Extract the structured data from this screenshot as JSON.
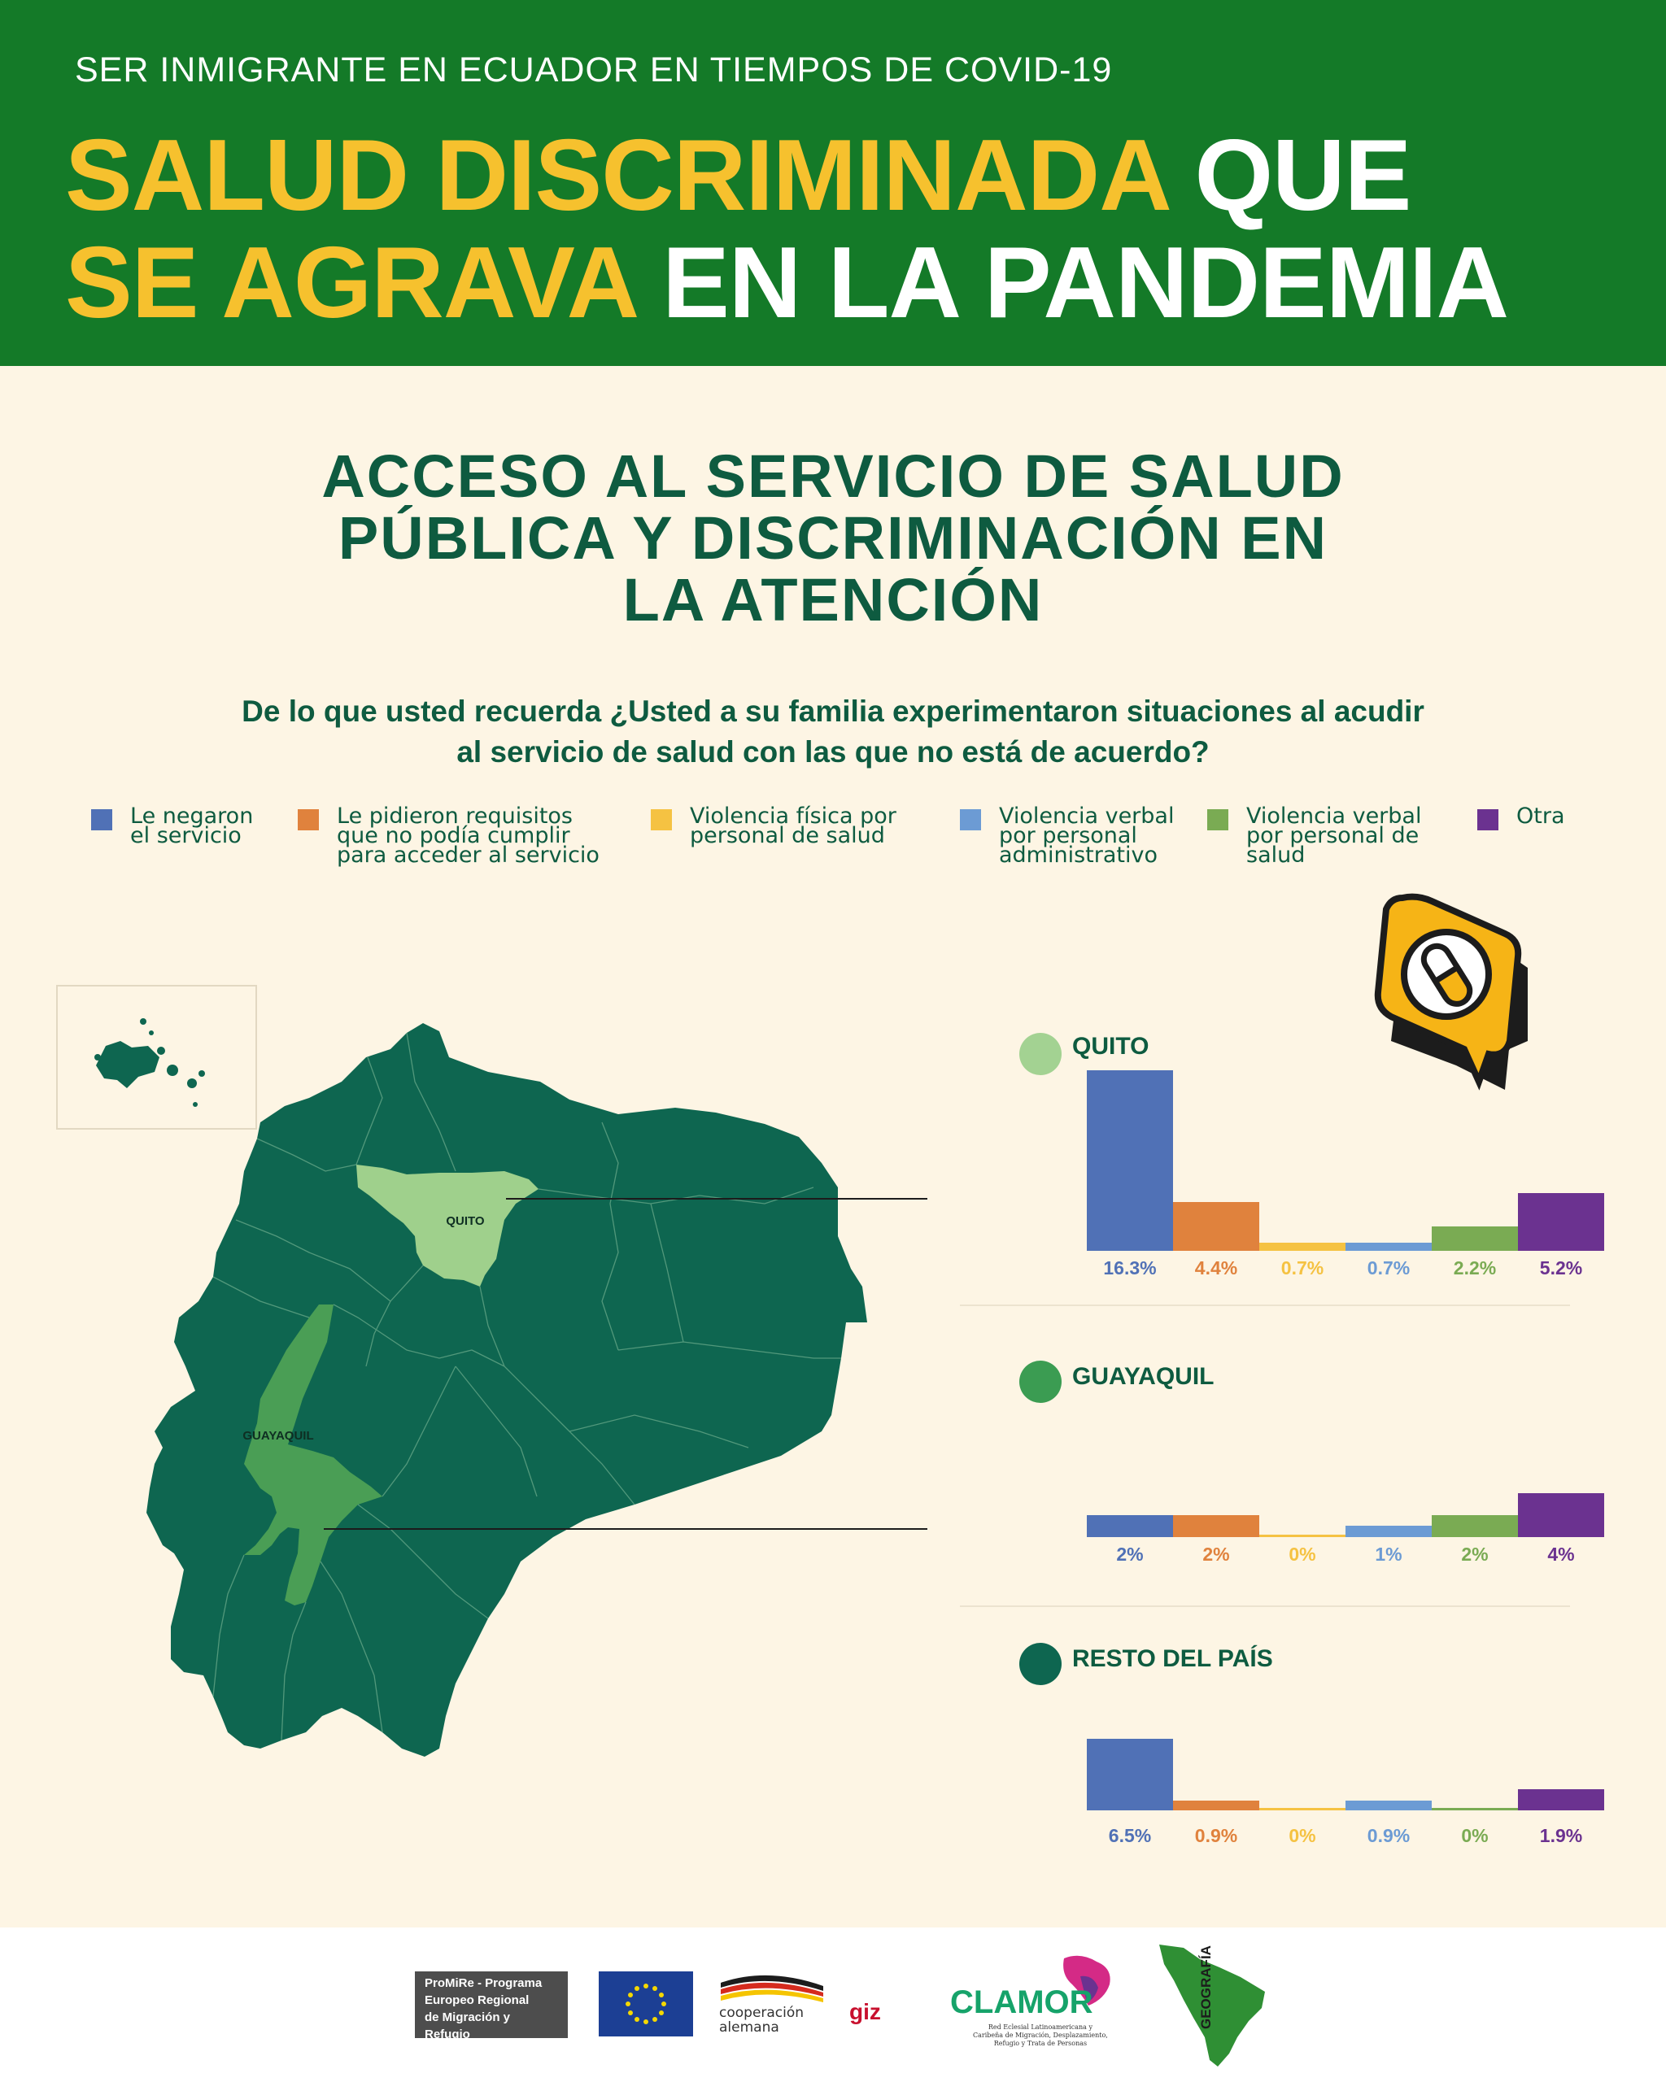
{
  "header": {
    "kicker": "SER INMIGRANTE EN ECUADOR EN TIEMPOS DE COVID-19",
    "line1_yellow": "SALUD DISCRIMINADA",
    "line1_white": "QUE",
    "line2_yellow": "SE AGRAVA",
    "line2_white": "EN LA PANDEMIA"
  },
  "section": {
    "title_line1": "ACCESO AL SERVICIO DE SALUD",
    "title_line2": "PÚBLICA Y DISCRIMINACIÓN EN",
    "title_line3": "LA ATENCIÓN",
    "question_line1": "De lo que usted recuerda ¿Usted a su familia experimentaron situaciones al acudir",
    "question_line2": "al servicio de salud con las que no está de acuerdo?"
  },
  "legend": [
    {
      "label": "Le negaron el servicio",
      "lines": [
        "Le negaron",
        "el servicio"
      ],
      "color": "#5071b6"
    },
    {
      "label": "Le pidieron requisitos que no podía cumplir para acceder al servicio",
      "lines": [
        "Le pidieron requisitos",
        "que no podía cumplir",
        "para acceder al servicio"
      ],
      "color": "#e0823d"
    },
    {
      "label": "Violencia física por personal de salud",
      "lines": [
        "Violencia física por",
        "personal de salud"
      ],
      "color": "#f5c242"
    },
    {
      "label": "Violencia verbal por personal administrativo",
      "lines": [
        "Violencia verbal",
        "por personal",
        "administrativo"
      ],
      "color": "#6c9bd4"
    },
    {
      "label": "Violencia verbal por personal de salud",
      "lines": [
        "Violencia verbal",
        "por personal de",
        "salud"
      ],
      "color": "#7aab53"
    },
    {
      "label": "Otra",
      "lines": [
        "Otra"
      ],
      "color": "#6b3290"
    }
  ],
  "map": {
    "quito_label": "QUITO",
    "guayaquil_label": "GUAYAQUIL",
    "colors": {
      "country": "#0e6650",
      "quito": "#9fd08c",
      "guayaquil": "#4a9e55"
    }
  },
  "chart_data": [
    {
      "type": "bar",
      "title": "QUITO",
      "dot_color": "#a3d292",
      "categories": [
        "Le negaron el servicio",
        "Le pidieron requisitos que no podía cumplir para acceder al servicio",
        "Violencia física por personal de salud",
        "Violencia verbal por personal administrativo",
        "Violencia verbal por personal de salud",
        "Otra"
      ],
      "values": [
        16.3,
        4.4,
        0.7,
        0.7,
        2.2,
        5.2
      ],
      "value_labels": [
        "16.3%",
        "4.4%",
        "0.7%",
        "0.7%",
        "2.2%",
        "5.2%"
      ],
      "unit": "%"
    },
    {
      "type": "bar",
      "title": "GUAYAQUIL",
      "dot_color": "#3b9c52",
      "categories": [
        "Le negaron el servicio",
        "Le pidieron requisitos que no podía cumplir para acceder al servicio",
        "Violencia física por personal de salud",
        "Violencia verbal por personal administrativo",
        "Violencia verbal por personal de salud",
        "Otra"
      ],
      "values": [
        2,
        2,
        0,
        1,
        2,
        4
      ],
      "value_labels": [
        "2%",
        "2%",
        "0%",
        "1%",
        "2%",
        "4%"
      ],
      "unit": "%"
    },
    {
      "type": "bar",
      "title": "RESTO DEL PAÍS",
      "dot_color": "#0e6650",
      "categories": [
        "Le negaron el servicio",
        "Le pidieron requisitos que no podía cumplir para acceder al servicio",
        "Violencia física por personal de salud",
        "Violencia verbal por personal administrativo",
        "Violencia verbal por personal de salud",
        "Otra"
      ],
      "values": [
        6.5,
        0.9,
        0,
        0.9,
        0,
        1.9
      ],
      "value_labels": [
        "6.5%",
        "0.9%",
        "0%",
        "0.9%",
        "0%",
        "1.9%"
      ],
      "unit": "%"
    }
  ],
  "footer": {
    "promire_lines": [
      "ProMiRe - Programa",
      "Europeo Regional",
      "de Migración y Refugio"
    ],
    "coop_line1": "cooperación",
    "coop_line2": "alemana",
    "giz_label": "giz",
    "clamor_name": "CLAMOR",
    "clamor_sub": [
      "Red Eclesial Latinoamericana y",
      "Caribeña de Migración, Desplazamiento,",
      "Refugio y Trata de Personas"
    ],
    "geo_label": "GEOGRAFÍA"
  }
}
